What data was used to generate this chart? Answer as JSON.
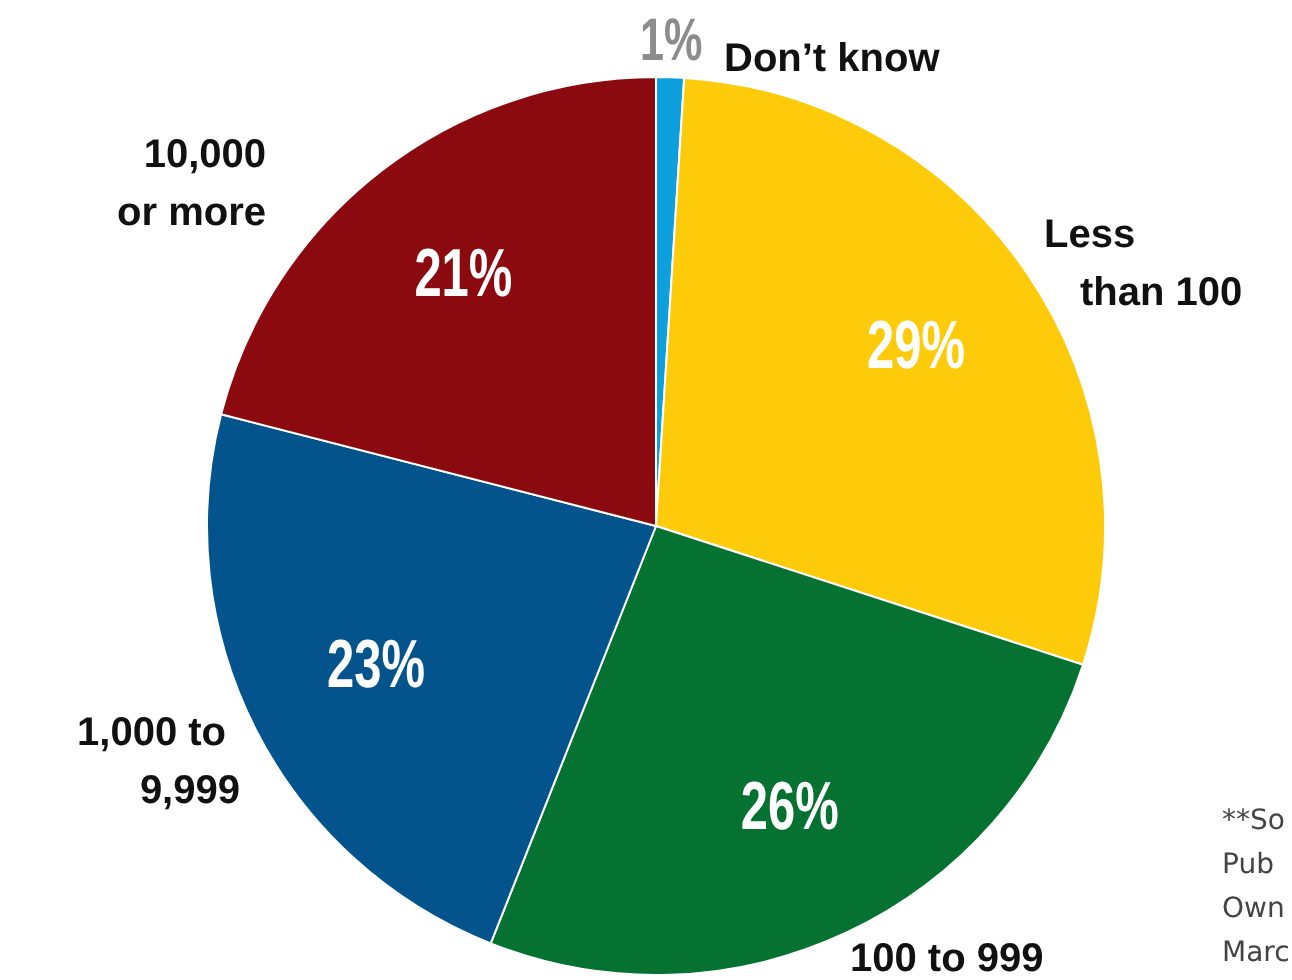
{
  "chart_data": {
    "type": "pie",
    "categories": [
      "Don’t know",
      "Less than 100",
      "100 to 999",
      "1,000 to 9,999",
      "10,000 or more"
    ],
    "values": [
      1,
      29,
      26,
      23,
      21
    ],
    "colors": [
      "#0ea0dc",
      "#fecb0a",
      "#067232",
      "#03548c",
      "#8b0a10"
    ],
    "value_labels": [
      "1%",
      "29%",
      "26%",
      "23%",
      "21%"
    ],
    "legend": false,
    "annotations": [
      "**So",
      "Pub",
      "Own",
      "Marc"
    ]
  }
}
